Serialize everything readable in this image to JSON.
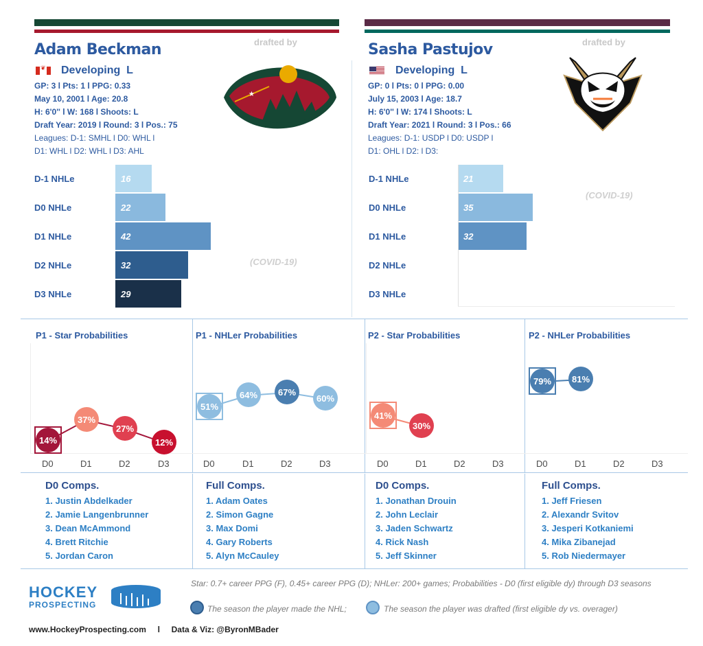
{
  "players": [
    {
      "name": "Adam Beckman",
      "drafted_by_label": "drafted by",
      "team_logo": "minnesota-wild-logo",
      "flag": "canada-flag",
      "status": "Developing",
      "position": "L",
      "info_lines": [
        "GP: 3 l Pts: 1 l PPG: 0.33",
        "May 10, 2001 l Age: 20.8",
        "H: 6'0'' l W: 168 l Shoots: L",
        "Draft Year: 2019 l Round: 3 l Pos.: 75"
      ],
      "league_lines": [
        "Leagues: D-1: SMHL l D0: WHL l",
        "D1: WHL l D2: WHL l D3: AHL"
      ],
      "covid_label": "(COVID-19)"
    },
    {
      "name": "Sasha Pastujov",
      "drafted_by_label": "drafted by",
      "team_logo": "anaheim-ducks-logo",
      "flag": "usa-flag",
      "status": "Developing",
      "position": "L",
      "info_lines": [
        "GP: 0 l Pts: 0 l PPG: 0.00",
        "July 15, 2003 l Age: 18.7",
        "H: 6'0'' l W: 174 l Shoots: L",
        "Draft Year: 2021 l Round: 3 l Pos.: 66"
      ],
      "league_lines": [
        "Leagues: D-1: USDP l D0: USDP l",
        "D1: OHL l D2:  l D3:"
      ],
      "covid_label": "(COVID-19)"
    }
  ],
  "chart_data": [
    {
      "type": "bar",
      "orientation": "horizontal",
      "player": "Adam Beckman",
      "categories": [
        "D-1 NHLe",
        "D0 NHLe",
        "D1 NHLe",
        "D2 NHLe",
        "D3 NHLe"
      ],
      "values": [
        16,
        22,
        42,
        32,
        29
      ],
      "colors": [
        "#b5daf0",
        "#8ab9de",
        "#5f93c4",
        "#2e5d8e",
        "#1a3049"
      ]
    },
    {
      "type": "bar",
      "orientation": "horizontal",
      "player": "Sasha Pastujov",
      "categories": [
        "D-1 NHLe",
        "D0 NHLe",
        "D1 NHLe",
        "D2 NHLe",
        "D3 NHLe"
      ],
      "values": [
        21,
        35,
        32,
        null,
        null
      ],
      "colors": [
        "#b5daf0",
        "#8ab9de",
        "#5f93c4",
        "#2e5d8e",
        "#1a3049"
      ]
    },
    {
      "type": "line",
      "title": "P1 - Star Probabilities",
      "x": [
        "D0",
        "D1",
        "D2",
        "D3"
      ],
      "values": [
        14,
        37,
        27,
        12
      ],
      "unit": "%",
      "colors": [
        "#a3163a",
        "#f48a76",
        "#e04050",
        "#c8102e"
      ],
      "drafted_marker": "D0"
    },
    {
      "type": "line",
      "title": "P1 - NHLer Probabilities",
      "x": [
        "D0",
        "D1",
        "D2",
        "D3"
      ],
      "values": [
        51,
        64,
        67,
        60
      ],
      "unit": "%",
      "colors": [
        "#8ebde0",
        "#8ebde0",
        "#4a7eb0",
        "#8ebde0"
      ],
      "drafted_marker": "D0"
    },
    {
      "type": "line",
      "title": "P2 - Star Probabilities",
      "x": [
        "D0",
        "D1",
        "D2",
        "D3"
      ],
      "values": [
        41,
        30,
        null,
        null
      ],
      "unit": "%",
      "colors": [
        "#f48a76",
        "#e04050",
        null,
        null
      ],
      "drafted_marker": "D0"
    },
    {
      "type": "line",
      "title": "P2 - NHLer Probabilities",
      "x": [
        "D0",
        "D1",
        "D2",
        "D3"
      ],
      "values": [
        79,
        81,
        null,
        null
      ],
      "unit": "%",
      "colors": [
        "#4a7eb0",
        "#4a7eb0",
        null,
        null
      ],
      "drafted_marker": "D0"
    }
  ],
  "comps": [
    {
      "title": "D0 Comps.",
      "items": [
        "1. Justin Abdelkader",
        "2. Jamie Langenbrunner",
        "3. Dean McAmmond",
        "4. Brett Ritchie",
        "5. Jordan Caron"
      ]
    },
    {
      "title": "Full Comps.",
      "items": [
        "1. Adam Oates",
        "2. Simon Gagne",
        "3. Max Domi",
        "4. Gary Roberts",
        "5. Alyn McCauley"
      ]
    },
    {
      "title": "D0 Comps.",
      "items": [
        "1. Jonathan Drouin",
        "2. John Leclair",
        "3. Jaden Schwartz",
        "4. Rick Nash",
        "5. Jeff Skinner"
      ]
    },
    {
      "title": "Full Comps.",
      "items": [
        "1. Jeff Friesen",
        "2. Alexandr Svitov",
        "3. Jesperi Kotkaniemi",
        "4. Mika Zibanejad",
        "5. Rob Niedermayer"
      ]
    }
  ],
  "footer": {
    "logo_line1": "HOCKEY",
    "logo_line2": "PROSPECTING",
    "note": "Star: 0.7+ career PPG (F), 0.45+ career PPG (D); NHLer: 200+ games; Probabilities - D0 (first eligible dy) through D3 seasons",
    "legend_nhl": "The season the player made the NHL;",
    "legend_drafted": "The season the player was drafted (first eligible dy vs. overager)",
    "website": "www.HockeyProspecting.com",
    "separator": "l",
    "credit": "Data & Viz: @ByronMBader",
    "colors": {
      "nhl_dot": "#4a7eb0",
      "drafted_dot": "#8ebde0"
    }
  }
}
